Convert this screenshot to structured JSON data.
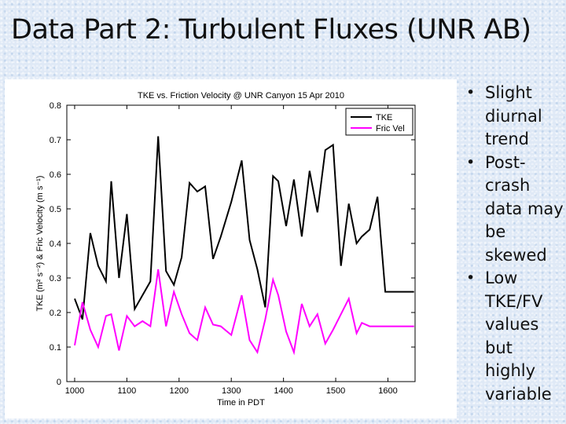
{
  "slide": {
    "title": "Data Part 2: Turbulent Fluxes (UNR AB)",
    "bullets": [
      "Slight diurnal trend",
      "Post-crash data may be skewed",
      "Low TKE/FV values but highly variable"
    ]
  },
  "chart_data": {
    "type": "line",
    "title": "TKE vs. Friction Velocity @ UNR Canyon 15 Apr 2010",
    "xlabel": "Time in PDT",
    "ylabel": "TKE (m² s⁻²) & Fric Velocity (m s⁻¹)",
    "xlim": [
      985,
      1652
    ],
    "ylim": [
      0,
      0.8
    ],
    "xticks": [
      1000,
      1100,
      1200,
      1300,
      1400,
      1500,
      1600
    ],
    "yticks": [
      0,
      0.1,
      0.2,
      0.3,
      0.4,
      0.5,
      0.6,
      0.7,
      0.8
    ],
    "legend_position": "top-right",
    "grid": false,
    "series": [
      {
        "name": "TKE",
        "color": "#000000",
        "x": [
          1000,
          1015,
          1030,
          1045,
          1060,
          1070,
          1085,
          1100,
          1115,
          1130,
          1145,
          1160,
          1175,
          1190,
          1205,
          1220,
          1235,
          1250,
          1265,
          1280,
          1300,
          1320,
          1335,
          1350,
          1365,
          1380,
          1390,
          1405,
          1420,
          1435,
          1450,
          1465,
          1480,
          1495,
          1510,
          1525,
          1540,
          1550,
          1565,
          1580,
          1595,
          1610,
          1620,
          1635,
          1650
        ],
        "values": [
          0.24,
          0.18,
          0.43,
          0.335,
          0.29,
          0.58,
          0.3,
          0.485,
          0.21,
          0.25,
          0.29,
          0.71,
          0.32,
          0.28,
          0.36,
          0.575,
          0.55,
          0.565,
          0.355,
          0.42,
          0.52,
          0.64,
          0.41,
          0.325,
          0.215,
          0.595,
          0.58,
          0.45,
          0.585,
          0.42,
          0.61,
          0.49,
          0.67,
          0.685,
          0.335,
          0.515,
          0.4,
          0.42,
          0.44,
          0.535,
          0.26,
          0.26,
          0.26,
          0.26,
          0.26
        ]
      },
      {
        "name": "Fric Vel",
        "color": "#ff00ff",
        "x": [
          1000,
          1015,
          1030,
          1045,
          1060,
          1070,
          1085,
          1100,
          1115,
          1130,
          1145,
          1160,
          1175,
          1190,
          1205,
          1220,
          1235,
          1250,
          1265,
          1280,
          1300,
          1320,
          1335,
          1350,
          1365,
          1380,
          1390,
          1405,
          1420,
          1435,
          1450,
          1465,
          1480,
          1495,
          1510,
          1525,
          1540,
          1550,
          1565,
          1580,
          1595,
          1610,
          1620,
          1635,
          1650
        ],
        "values": [
          0.105,
          0.23,
          0.15,
          0.1,
          0.19,
          0.195,
          0.09,
          0.19,
          0.16,
          0.175,
          0.16,
          0.325,
          0.16,
          0.26,
          0.195,
          0.14,
          0.12,
          0.215,
          0.165,
          0.16,
          0.135,
          0.25,
          0.12,
          0.085,
          0.18,
          0.295,
          0.25,
          0.145,
          0.085,
          0.225,
          0.16,
          0.195,
          0.11,
          0.15,
          0.195,
          0.24,
          0.14,
          0.17,
          0.16,
          0.16,
          0.16,
          0.16,
          0.16,
          0.16,
          0.16
        ]
      }
    ]
  }
}
